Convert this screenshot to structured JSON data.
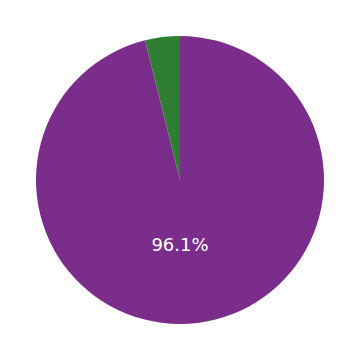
{
  "chart_data": {
    "type": "pie",
    "values": [
      96.1,
      3.9
    ],
    "colors": [
      "#7b2d8b",
      "#2e7d32"
    ],
    "annotations": [
      "96.1%"
    ]
  }
}
